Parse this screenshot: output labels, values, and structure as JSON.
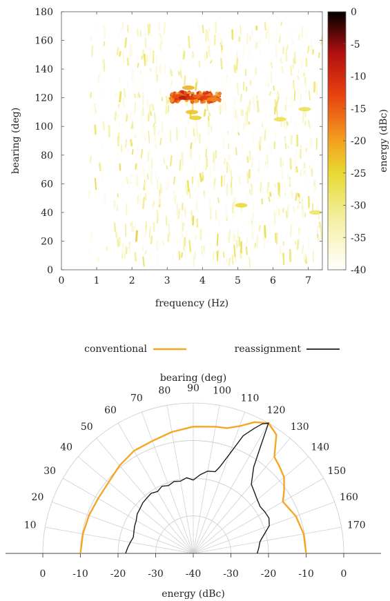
{
  "colors": {
    "conventional": "#f5a623",
    "reassignment": "#1a1a1a",
    "grid": "#cfcfcf",
    "axis": "#444444"
  },
  "chart_data": [
    {
      "type": "heatmap",
      "xlabel": "frequency (Hz)",
      "ylabel": "bearing (deg)",
      "colorbar_label": "energy (dBc)",
      "xlim": [
        0,
        7.4
      ],
      "ylim": [
        0,
        180
      ],
      "xticks": [
        "0",
        "1",
        "2",
        "3",
        "4",
        "5",
        "6",
        "7"
      ],
      "yticks": [
        "0",
        "20",
        "40",
        "60",
        "80",
        "100",
        "120",
        "140",
        "160",
        "180"
      ],
      "colorbar_ticks": [
        "0",
        "-5",
        "-10",
        "-15",
        "-20",
        "-25",
        "-30",
        "-35",
        "-40"
      ],
      "clim": [
        -40,
        0
      ],
      "colormap": [
        "#ffffff",
        "#f3f0a0",
        "#e8d830",
        "#f2a020",
        "#e84010",
        "#b01010",
        "#000000"
      ],
      "hotspots": [
        {
          "freq": 3.3,
          "bearing": 121,
          "db": -14
        },
        {
          "freq": 3.5,
          "bearing": 120,
          "db": -8
        },
        {
          "freq": 3.7,
          "bearing": 120,
          "db": -12
        },
        {
          "freq": 3.9,
          "bearing": 121,
          "db": -16
        },
        {
          "freq": 4.1,
          "bearing": 120,
          "db": -13
        },
        {
          "freq": 4.3,
          "bearing": 119,
          "db": -18
        },
        {
          "freq": 3.6,
          "bearing": 127,
          "db": -22
        },
        {
          "freq": 3.7,
          "bearing": 110,
          "db": -24
        },
        {
          "freq": 3.8,
          "bearing": 106,
          "db": -26
        },
        {
          "freq": 5.1,
          "bearing": 45,
          "db": -27
        },
        {
          "freq": 6.2,
          "bearing": 105,
          "db": -29
        },
        {
          "freq": 6.9,
          "bearing": 112,
          "db": -29
        },
        {
          "freq": 7.2,
          "bearing": 40,
          "db": -30
        }
      ]
    },
    {
      "type": "line",
      "subtype": "polar",
      "angle_label": "bearing (deg)",
      "radial_label": "energy (dBc)",
      "angle_range": [
        0,
        180
      ],
      "angle_ticks": [
        "10",
        "20",
        "30",
        "40",
        "50",
        "60",
        "70",
        "80",
        "90",
        "100",
        "110",
        "120",
        "130",
        "140",
        "150",
        "160",
        "170"
      ],
      "radial_range": [
        -40,
        0
      ],
      "radial_ticks": [
        "0",
        "-10",
        "-20",
        "-30",
        "-40",
        "-30",
        "-20",
        "-10",
        "0"
      ],
      "legend_placement": "top",
      "series": [
        {
          "name": "conventional",
          "bearing": [
            0,
            10,
            20,
            30,
            40,
            50,
            60,
            70,
            80,
            90,
            100,
            105,
            110,
            115,
            120,
            125,
            130,
            135,
            140,
            145,
            150,
            160,
            170,
            180
          ],
          "energy": [
            -10,
            -10.2,
            -10.5,
            -10.8,
            -10.6,
            -9.5,
            -8.5,
            -8.2,
            -7.2,
            -6.3,
            -5.8,
            -5.5,
            -4,
            -1.5,
            0,
            -1.5,
            -6.5,
            -7.5,
            -8.5,
            -10.5,
            -12.5,
            -11,
            -10.2,
            -10
          ]
        },
        {
          "name": "reassignment",
          "bearing": [
            0,
            5,
            10,
            15,
            20,
            25,
            30,
            35,
            40,
            45,
            50,
            55,
            60,
            65,
            70,
            75,
            80,
            85,
            90,
            95,
            100,
            105,
            107,
            110,
            113,
            116,
            118,
            120,
            122,
            125,
            130,
            135,
            140,
            145,
            150,
            155,
            160,
            165,
            170,
            175,
            180
          ],
          "energy": [
            -22,
            -22.5,
            -23,
            -23.5,
            -23.2,
            -22.8,
            -22.5,
            -21.8,
            -21.5,
            -21,
            -20.8,
            -20.5,
            -21,
            -20.3,
            -20.8,
            -20.2,
            -20.5,
            -19.8,
            -20.5,
            -19,
            -17.8,
            -17.5,
            -16,
            -12,
            -6,
            -3,
            -1,
            0,
            -6,
            -12,
            -16,
            -17,
            -17.8,
            -18.3,
            -18,
            -17.8,
            -18.5,
            -20.5,
            -22,
            -22.5,
            -23
          ]
        }
      ]
    }
  ]
}
